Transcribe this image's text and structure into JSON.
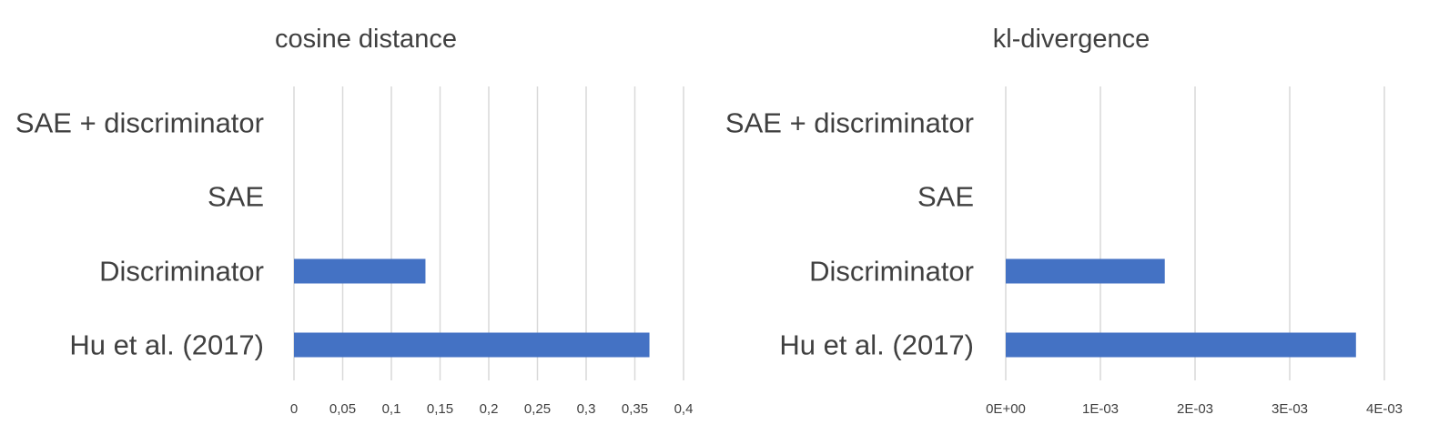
{
  "chart_data": [
    {
      "type": "bar",
      "orientation": "horizontal",
      "title": "cosine distance",
      "xlabel": "",
      "ylabel": "",
      "categories": [
        "SAE + discriminator",
        "SAE",
        "Discriminator",
        "Hu et al. (2017)"
      ],
      "values": [
        0,
        0,
        0.135,
        0.365
      ],
      "xlim": [
        0,
        0.4
      ],
      "ticks": [
        0,
        0.05,
        0.1,
        0.15,
        0.2,
        0.25,
        0.3,
        0.35,
        0.4
      ],
      "tick_labels": [
        "0",
        "0,05",
        "0,1",
        "0,15",
        "0,2",
        "0,25",
        "0,3",
        "0,35",
        "0,4"
      ],
      "grid": true,
      "legend": "none",
      "bar_color": "#4472C4"
    },
    {
      "type": "bar",
      "orientation": "horizontal",
      "title": "kl-divergence",
      "xlabel": "",
      "ylabel": "",
      "categories": [
        "SAE + discriminator",
        "SAE",
        "Discriminator",
        "Hu et al. (2017)"
      ],
      "values": [
        0,
        0,
        0.00168,
        0.0037
      ],
      "xlim": [
        0,
        0.004
      ],
      "ticks": [
        0,
        0.001,
        0.002,
        0.003,
        0.004
      ],
      "tick_labels": [
        "0E+00",
        "1E-03",
        "2E-03",
        "3E-03",
        "4E-03"
      ],
      "grid": true,
      "legend": "none",
      "bar_color": "#4472C4"
    }
  ]
}
